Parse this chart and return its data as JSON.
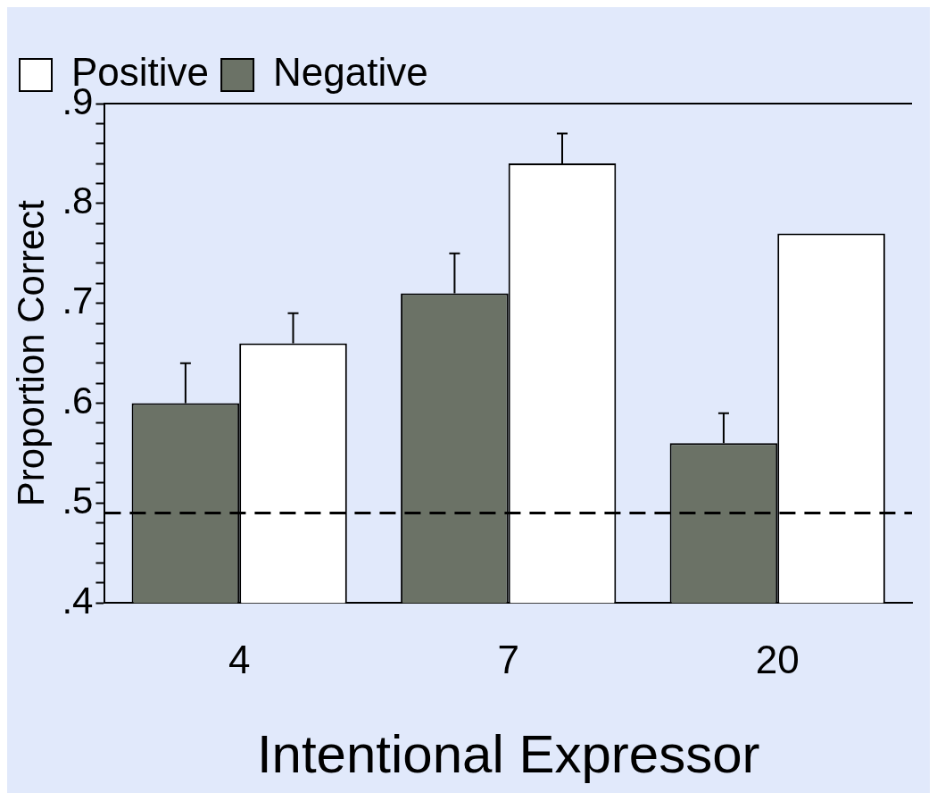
{
  "chart_data": {
    "type": "bar",
    "ylabel": "Proportion Correct",
    "xlabel": "Intentional Expressor",
    "categories": [
      "4",
      "7",
      "20"
    ],
    "series": [
      {
        "name": "Negative",
        "color": "#6b7266",
        "values": [
          0.6,
          0.71,
          0.56
        ],
        "errors": [
          [
            0.6,
            0.64
          ],
          [
            0.71,
            0.75
          ],
          [
            0.56,
            0.59
          ]
        ]
      },
      {
        "name": "Positive",
        "color": "#ffffff",
        "values": [
          0.66,
          0.84,
          0.77
        ],
        "errors": [
          [
            0.66,
            0.69
          ],
          [
            0.84,
            0.87
          ],
          null
        ]
      }
    ],
    "ylim": [
      0.4,
      0.9
    ],
    "yticks": [
      {
        "value": 0.4,
        "label": ".4"
      },
      {
        "value": 0.42,
        "label": null
      },
      {
        "value": 0.44,
        "label": null
      },
      {
        "value": 0.46,
        "label": null
      },
      {
        "value": 0.48,
        "label": null
      },
      {
        "value": 0.5,
        "label": ".5"
      },
      {
        "value": 0.52,
        "label": null
      },
      {
        "value": 0.54,
        "label": null
      },
      {
        "value": 0.56,
        "label": null
      },
      {
        "value": 0.58,
        "label": null
      },
      {
        "value": 0.6,
        "label": ".6"
      },
      {
        "value": 0.62,
        "label": null
      },
      {
        "value": 0.64,
        "label": null
      },
      {
        "value": 0.66,
        "label": null
      },
      {
        "value": 0.68,
        "label": null
      },
      {
        "value": 0.7,
        "label": ".7"
      },
      {
        "value": 0.72,
        "label": null
      },
      {
        "value": 0.74,
        "label": null
      },
      {
        "value": 0.76,
        "label": null
      },
      {
        "value": 0.78,
        "label": null
      },
      {
        "value": 0.8,
        "label": ".8"
      },
      {
        "value": 0.82,
        "label": null
      },
      {
        "value": 0.84,
        "label": null
      },
      {
        "value": 0.86,
        "label": null
      },
      {
        "value": 0.88,
        "label": null
      },
      {
        "value": 0.9,
        "label": ".9"
      }
    ],
    "ref_lines": [
      {
        "axis": "y",
        "value": 0.49,
        "line_style": "dashed",
        "color": "#000000"
      }
    ],
    "legend": "top left",
    "grid": false
  }
}
